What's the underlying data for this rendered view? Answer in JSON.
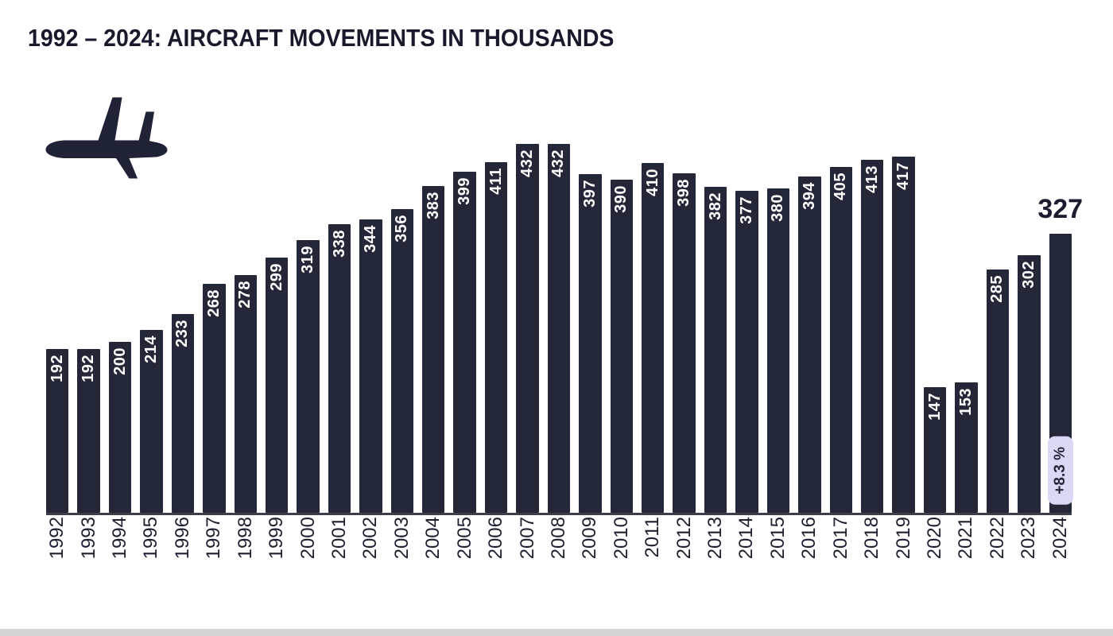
{
  "chart_data": {
    "type": "bar",
    "title": "1992 – 2024: AIRCRAFT MOVEMENTS IN THOUSANDS",
    "categories": [
      1992,
      1993,
      1994,
      1995,
      1996,
      1997,
      1998,
      1999,
      2000,
      2001,
      2002,
      2003,
      2004,
      2005,
      2006,
      2007,
      2008,
      2009,
      2010,
      2011,
      2012,
      2013,
      2014,
      2015,
      2016,
      2017,
      2018,
      2019,
      2020,
      2021,
      2022,
      2023,
      2024
    ],
    "values": [
      192,
      192,
      200,
      214,
      233,
      268,
      278,
      299,
      319,
      338,
      344,
      356,
      383,
      399,
      411,
      432,
      432,
      397,
      390,
      410,
      398,
      382,
      377,
      380,
      394,
      405,
      413,
      417,
      147,
      153,
      285,
      302,
      327
    ],
    "ylim": [
      0,
      450
    ],
    "grid": false,
    "legend": "none",
    "highlight": {
      "year": 2024,
      "value_label": "327",
      "badge": "+8.3 %"
    },
    "colors": {
      "bar": "#232738",
      "value_text": "#ffffff",
      "axis_text": "#1d2030",
      "badge_bg": "#dbd8f5",
      "badge_text": "#232738"
    },
    "icon": "airplane-icon"
  }
}
